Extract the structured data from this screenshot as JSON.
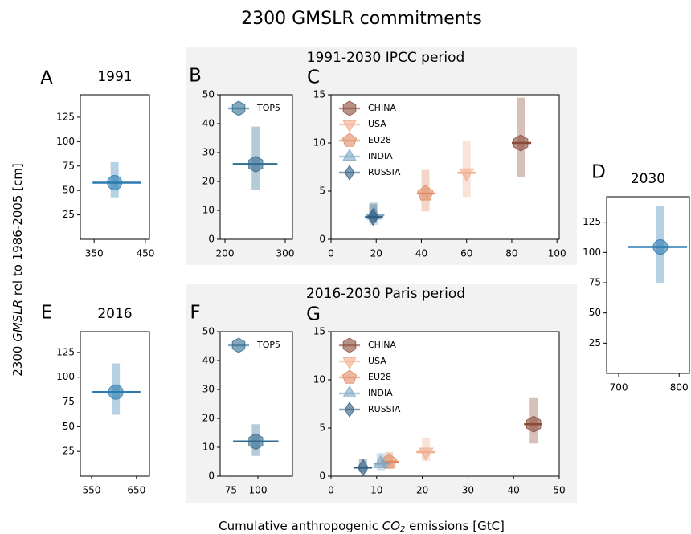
{
  "figure": {
    "title": "2300 GMSLR commitments",
    "group_titles": [
      "1991-2030 IPCC period",
      "2016-2030 Paris period"
    ],
    "ylabel": [
      "2300 ",
      "GMSLR",
      " rel to 1986-2005 [cm]"
    ],
    "xlabel": [
      "Cumulative anthropogenic ",
      "CO",
      "2",
      " emissions [GtC]"
    ]
  },
  "chart_data": [
    {
      "type": "scatter",
      "label": "A",
      "title": "1991",
      "xlim": [
        323,
        458
      ],
      "xticks": [
        350,
        450
      ],
      "ylim": [
        0,
        148
      ],
      "yticks": [
        25,
        50,
        75,
        100,
        125
      ],
      "series": [
        {
          "color": "#2a7ab0",
          "marker": "circle",
          "x": [
            390
          ],
          "values": [
            58
          ],
          "yerr_low": [
            43
          ],
          "yerr_high": [
            79
          ],
          "xerr_low": [
            347
          ],
          "xerr_high": [
            441
          ]
        }
      ]
    },
    {
      "type": "scatter",
      "label": "B",
      "legend": "upper left",
      "xlim": [
        192,
        312
      ],
      "xticks": [
        200,
        300
      ],
      "ylim": [
        0,
        50
      ],
      "yticks": [
        0,
        10,
        20,
        30,
        40,
        50
      ],
      "series": [
        {
          "name": "TOP5",
          "color": "#2e6a8e",
          "marker": "hexagon",
          "x": [
            251
          ],
          "values": [
            26
          ],
          "yerr_low": [
            17
          ],
          "yerr_high": [
            39
          ],
          "xerr_low": [
            213
          ],
          "xerr_high": [
            287
          ]
        }
      ]
    },
    {
      "type": "scatter",
      "label": "C",
      "legend": "upper left",
      "xlim": [
        0,
        101
      ],
      "xticks": [
        0,
        20,
        40,
        60,
        80,
        100
      ],
      "ylim": [
        0,
        15
      ],
      "yticks": [
        0,
        5,
        10,
        15
      ],
      "series": [
        {
          "name": "CHINA",
          "color": "#8b4a37",
          "marker": "hexagon",
          "x": [
            84
          ],
          "values": [
            10
          ],
          "yerr_low": [
            6.5
          ],
          "yerr_high": [
            14.7
          ],
          "xerr_low": [
            80
          ],
          "xerr_high": [
            88.6
          ]
        },
        {
          "name": "USA",
          "color": "#f0ad8c",
          "marker": "triangle-down",
          "x": [
            60
          ],
          "values": [
            6.9
          ],
          "yerr_low": [
            4.4
          ],
          "yerr_high": [
            10.2
          ],
          "xerr_low": [
            56
          ],
          "xerr_high": [
            64
          ]
        },
        {
          "name": "EU28",
          "color": "#e08a63",
          "marker": "pentagon",
          "x": [
            41.8
          ],
          "values": [
            4.75
          ],
          "yerr_low": [
            2.9
          ],
          "yerr_high": [
            7.2
          ],
          "xerr_low": [
            38
          ],
          "xerr_high": [
            46
          ]
        },
        {
          "name": "INDIA",
          "color": "#7aa6c2",
          "marker": "triangle-up",
          "x": [
            19
          ],
          "values": [
            2.5
          ],
          "yerr_low": [
            1.5
          ],
          "yerr_high": [
            3.9
          ],
          "xerr_low": [
            15.4
          ],
          "xerr_high": [
            23.6
          ]
        },
        {
          "name": "RUSSIA",
          "color": "#2f5b7e",
          "marker": "diamond",
          "x": [
            18.6
          ],
          "values": [
            2.3
          ],
          "yerr_low": [
            1.7
          ],
          "yerr_high": [
            3.7
          ],
          "xerr_low": [
            15
          ],
          "xerr_high": [
            23
          ]
        }
      ]
    },
    {
      "type": "scatter",
      "label": "D",
      "title": "2030",
      "xlim": [
        680,
        817
      ],
      "xticks": [
        700,
        800
      ],
      "ylim": [
        0,
        146
      ],
      "yticks": [
        25,
        50,
        75,
        100,
        125
      ],
      "series": [
        {
          "color": "#2a7ab0",
          "marker": "circle",
          "x": [
            769
          ],
          "values": [
            104.5
          ],
          "yerr_low": [
            75
          ],
          "yerr_high": [
            138
          ],
          "xerr_low": [
            716
          ],
          "xerr_high": [
            813
          ]
        }
      ]
    },
    {
      "type": "scatter",
      "label": "E",
      "title": "2016",
      "xlim": [
        525,
        679
      ],
      "xticks": [
        550,
        650
      ],
      "ylim": [
        0,
        146
      ],
      "yticks": [
        25,
        50,
        75,
        100,
        125
      ],
      "series": [
        {
          "color": "#2a7ab0",
          "marker": "circle",
          "x": [
            604
          ],
          "values": [
            85
          ],
          "yerr_low": [
            62
          ],
          "yerr_high": [
            114
          ],
          "xerr_low": [
            552
          ],
          "xerr_high": [
            659
          ]
        }
      ]
    },
    {
      "type": "scatter",
      "label": "F",
      "legend": "upper left",
      "xlim": [
        65,
        132
      ],
      "xticks": [
        75,
        100
      ],
      "ylim": [
        0,
        50
      ],
      "yticks": [
        0,
        10,
        20,
        30,
        40,
        50
      ],
      "series": [
        {
          "name": "TOP5",
          "color": "#2e6a8e",
          "marker": "hexagon",
          "x": [
            98
          ],
          "values": [
            12
          ],
          "yerr_low": [
            7
          ],
          "yerr_high": [
            18
          ],
          "xerr_low": [
            77
          ],
          "xerr_high": [
            119
          ]
        }
      ]
    },
    {
      "type": "scatter",
      "label": "G",
      "legend": "upper left",
      "xlim": [
        0,
        50
      ],
      "xticks": [
        0,
        10,
        20,
        30,
        40,
        50
      ],
      "ylim": [
        0,
        15
      ],
      "yticks": [
        0,
        5,
        10,
        15
      ],
      "series": [
        {
          "name": "CHINA",
          "color": "#8b4a37",
          "marker": "hexagon",
          "x": [
            44.4
          ],
          "values": [
            5.4
          ],
          "yerr_low": [
            3.4
          ],
          "yerr_high": [
            8.1
          ],
          "xerr_low": [
            42.3
          ],
          "xerr_high": [
            46.3
          ]
        },
        {
          "name": "USA",
          "color": "#f0ad8c",
          "marker": "triangle-down",
          "x": [
            20.8
          ],
          "values": [
            2.5
          ],
          "yerr_low": [
            1.6
          ],
          "yerr_high": [
            4
          ],
          "xerr_low": [
            18.7
          ],
          "xerr_high": [
            22.7
          ]
        },
        {
          "name": "EU28",
          "color": "#e08a63",
          "marker": "pentagon",
          "x": [
            12.7
          ],
          "values": [
            1.5
          ],
          "yerr_low": [
            0.9
          ],
          "yerr_high": [
            2.5
          ],
          "xerr_low": [
            10.9
          ],
          "xerr_high": [
            14.8
          ]
        },
        {
          "name": "INDIA",
          "color": "#7aa6c2",
          "marker": "triangle-up",
          "x": [
            10.9
          ],
          "values": [
            1.3
          ],
          "yerr_low": [
            0.6
          ],
          "yerr_high": [
            2.4
          ],
          "xerr_low": [
            9.3
          ],
          "xerr_high": [
            12.9
          ]
        },
        {
          "name": "RUSSIA",
          "color": "#2f5b7e",
          "marker": "diamond",
          "x": [
            7
          ],
          "values": [
            0.9
          ],
          "yerr_low": [
            0.4
          ],
          "yerr_high": [
            1.8
          ],
          "xerr_low": [
            4.9
          ],
          "xerr_high": [
            9
          ]
        }
      ]
    }
  ]
}
